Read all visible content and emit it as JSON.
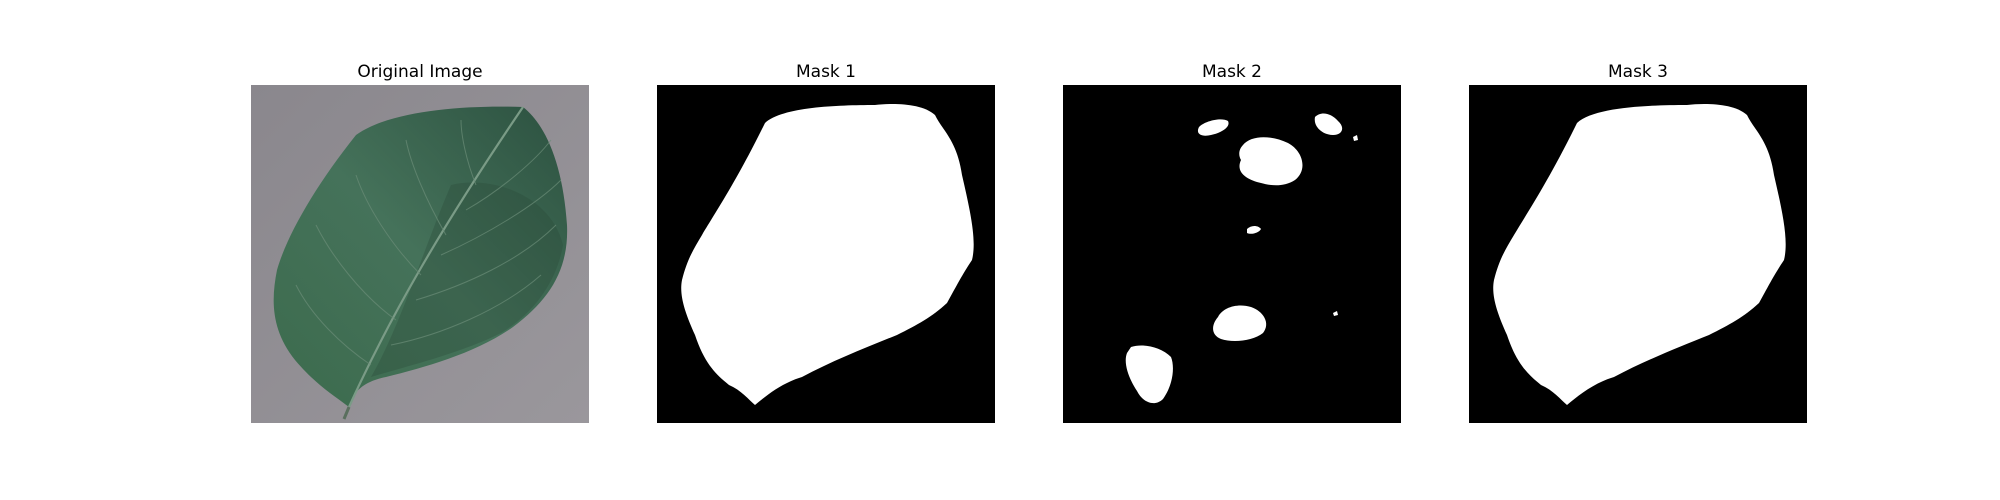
{
  "panels": [
    {
      "title": "Original Image",
      "content": "leaf-photo",
      "colors": {
        "background": "#8e8b92",
        "leaf": "#3f6a4e",
        "leaf_dark": "#2f5440",
        "vein": "#789a82"
      }
    },
    {
      "title": "Mask 1",
      "content": "binary-mask",
      "colors": {
        "background": "#000000",
        "foreground": "#ffffff"
      }
    },
    {
      "title": "Mask 2",
      "content": "binary-mask-fragmented",
      "colors": {
        "background": "#000000",
        "foreground": "#ffffff"
      }
    },
    {
      "title": "Mask 3",
      "content": "binary-mask",
      "colors": {
        "background": "#000000",
        "foreground": "#ffffff"
      }
    }
  ]
}
